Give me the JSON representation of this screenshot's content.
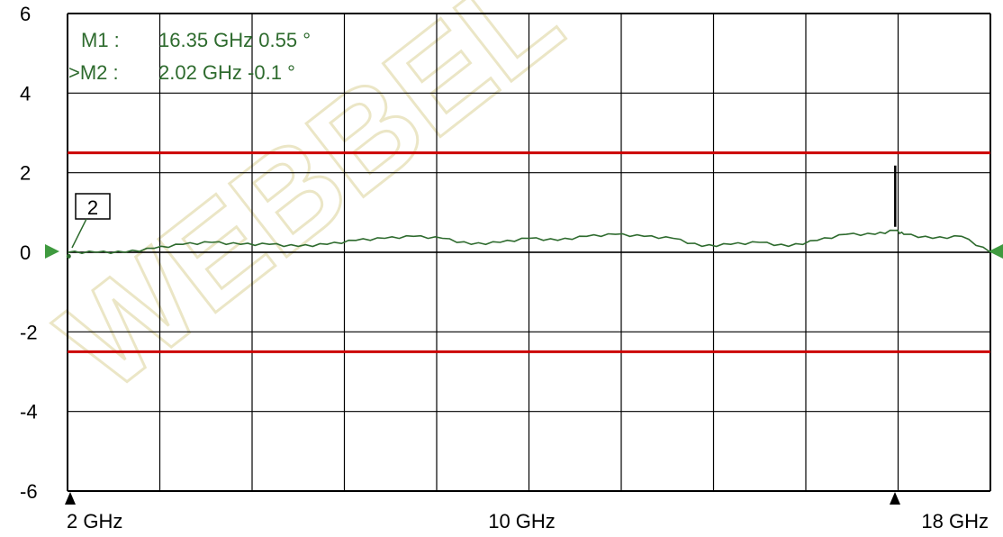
{
  "chart_data": {
    "type": "line",
    "title": "",
    "xlabel": "",
    "ylabel": "",
    "xlim": [
      2,
      18
    ],
    "ylim": [
      -6,
      6
    ],
    "x_ticks": [
      {
        "value": 2,
        "label": "2 GHz"
      },
      {
        "value": 10,
        "label": "10 GHz"
      },
      {
        "value": 18,
        "label": "18 GHz"
      }
    ],
    "y_ticks": [
      {
        "value": 6,
        "label": "6"
      },
      {
        "value": 4,
        "label": "4"
      },
      {
        "value": 2,
        "label": "2"
      },
      {
        "value": 0,
        "label": "0"
      },
      {
        "value": -2,
        "label": "-2"
      },
      {
        "value": -4,
        "label": "-4"
      },
      {
        "value": -6,
        "label": "-6"
      }
    ],
    "grid": true,
    "grid_divisions": {
      "x": 10,
      "y": 6
    },
    "limit_lines": [
      {
        "value": 2.5,
        "color": "#cc0000"
      },
      {
        "value": -2.5,
        "color": "#cc0000"
      }
    ],
    "series": [
      {
        "color": "#2e6b2e",
        "x": [
          2,
          2.5,
          3,
          3.5,
          4,
          4.5,
          5,
          5.5,
          6,
          6.5,
          7,
          7.5,
          8,
          8.5,
          9,
          9.5,
          10,
          10.5,
          11,
          11.5,
          12,
          12.5,
          13,
          13.5,
          14,
          14.5,
          15,
          15.5,
          16,
          16.35,
          16.5,
          17,
          17.5,
          18
        ],
        "y": [
          0.0,
          0.0,
          0.0,
          0.1,
          0.2,
          0.25,
          0.2,
          0.2,
          0.15,
          0.2,
          0.3,
          0.35,
          0.4,
          0.35,
          0.2,
          0.25,
          0.35,
          0.3,
          0.4,
          0.45,
          0.4,
          0.35,
          0.15,
          0.2,
          0.25,
          0.15,
          0.3,
          0.45,
          0.45,
          0.55,
          0.45,
          0.35,
          0.4,
          0.0
        ]
      }
    ],
    "markers": [
      {
        "label": "M1 :",
        "text": "16.35 GHz  0.55 °",
        "x": 16.35,
        "y": 0.55,
        "active": false
      },
      {
        "label": ">M2 :",
        "text": "2.02 GHz  -0.1 °",
        "x": 2.02,
        "y": -0.1,
        "active": true
      }
    ],
    "marker_tag": "2",
    "colors": {
      "grid": "#000000",
      "trace": "#2e6b2e",
      "limit": "#cc0000",
      "reference_arrow": "#3f9a3f"
    }
  },
  "watermark": "WEBBEL"
}
